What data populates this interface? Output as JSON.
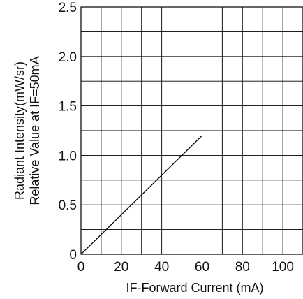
{
  "chart_data": {
    "type": "line",
    "title": "",
    "xlabel": "IF-Forward Current (mA)",
    "ylabel_lines": [
      "Radiant Intensity(mW/sr)",
      "Relative Value at IF=50mA"
    ],
    "xlim": [
      0,
      110
    ],
    "ylim": [
      0,
      2.5
    ],
    "x_ticks": [
      0,
      20,
      40,
      60,
      80,
      100
    ],
    "x_tick_labels": [
      "0",
      "20",
      "40",
      "60",
      "80",
      "100"
    ],
    "y_ticks": [
      0.5,
      1.0,
      1.5,
      2.0,
      2.5
    ],
    "y_tick_labels": [
      "0.5",
      "1.0",
      "1.5",
      "2.0",
      "2.5"
    ],
    "origin_label": "0",
    "x_grid_step": 10,
    "y_grid_step": 0.25,
    "grid": true,
    "legend": "none",
    "series": [
      {
        "x": [
          0,
          60
        ],
        "y": [
          0,
          1.2
        ],
        "color": "#000000"
      }
    ]
  }
}
